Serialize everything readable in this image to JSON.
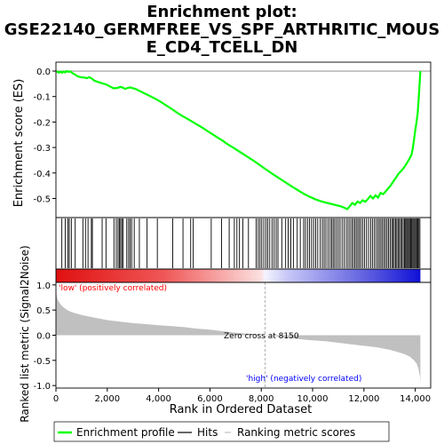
{
  "chart_data": {
    "type": "line",
    "title_lines": [
      "Enrichment plot:",
      "GSE22140_GERMFREE_VS_SPF_ARTHRITIC_MOUS",
      "E_CD4_TCELL_DN"
    ],
    "top_panel": {
      "ylabel": "Enrichment score (ES)",
      "ylim": [
        -0.575,
        0.035
      ],
      "yticks": [
        0.0,
        -0.1,
        -0.2,
        -0.3,
        -0.4,
        -0.5
      ],
      "ytick_labels": [
        "0.0",
        "-0.1",
        "-0.2",
        "-0.3",
        "-0.4",
        "-0.5"
      ],
      "grid": false
    },
    "x_axis": {
      "label": "Rank in Ordered Dataset",
      "lim": [
        0,
        14600
      ],
      "ticks": [
        0,
        2000,
        4000,
        6000,
        8000,
        10000,
        12000,
        14000
      ],
      "tick_labels": [
        "0",
        "2,000",
        "4,000",
        "6,000",
        "8,000",
        "10,000",
        "12,000",
        "14,000"
      ]
    },
    "enrichment_profile": {
      "name": "Enrichment profile",
      "color": "#00ff00",
      "x": [
        0,
        60,
        120,
        180,
        240,
        300,
        360,
        420,
        480,
        560,
        640,
        720,
        800,
        900,
        1000,
        1100,
        1200,
        1300,
        1400,
        1500,
        1650,
        1800,
        1950,
        2100,
        2250,
        2400,
        2500,
        2600,
        2700,
        2800,
        2900,
        3000,
        3100,
        3200,
        3300,
        3500,
        3700,
        3900,
        4100,
        4300,
        4500,
        4700,
        4900,
        5100,
        5300,
        5500,
        5700,
        5900,
        6100,
        6300,
        6500,
        6700,
        6900,
        7100,
        7300,
        7500,
        7700,
        7900,
        8100,
        8300,
        8500,
        8700,
        8900,
        9100,
        9300,
        9500,
        9700,
        9900,
        10100,
        10300,
        10500,
        10700,
        10900,
        11100,
        11250,
        11350,
        11450,
        11550,
        11650,
        11750,
        11850,
        11950,
        12050,
        12150,
        12250,
        12350,
        12450,
        12550,
        12650,
        12750,
        12850,
        12950,
        13050,
        13150,
        13250,
        13350,
        13450,
        13550,
        13650,
        13750,
        13850,
        13900,
        13950,
        14000,
        14050,
        14100,
        14150,
        14200
      ],
      "y": [
        0.0,
        -0.003,
        -0.006,
        -0.002,
        -0.007,
        -0.002,
        -0.005,
        0.0,
        -0.003,
        -0.001,
        -0.008,
        -0.012,
        -0.018,
        -0.022,
        -0.025,
        -0.025,
        -0.028,
        -0.024,
        -0.03,
        -0.038,
        -0.043,
        -0.048,
        -0.052,
        -0.06,
        -0.068,
        -0.066,
        -0.062,
        -0.065,
        -0.07,
        -0.066,
        -0.064,
        -0.068,
        -0.07,
        -0.075,
        -0.08,
        -0.09,
        -0.1,
        -0.11,
        -0.122,
        -0.135,
        -0.148,
        -0.162,
        -0.175,
        -0.186,
        -0.198,
        -0.21,
        -0.222,
        -0.235,
        -0.248,
        -0.261,
        -0.274,
        -0.288,
        -0.3,
        -0.313,
        -0.326,
        -0.339,
        -0.352,
        -0.366,
        -0.38,
        -0.394,
        -0.408,
        -0.421,
        -0.434,
        -0.447,
        -0.46,
        -0.472,
        -0.484,
        -0.494,
        -0.503,
        -0.51,
        -0.516,
        -0.521,
        -0.526,
        -0.531,
        -0.537,
        -0.542,
        -0.53,
        -0.518,
        -0.525,
        -0.512,
        -0.518,
        -0.507,
        -0.513,
        -0.503,
        -0.49,
        -0.5,
        -0.488,
        -0.497,
        -0.478,
        -0.483,
        -0.472,
        -0.46,
        -0.448,
        -0.432,
        -0.418,
        -0.402,
        -0.392,
        -0.38,
        -0.365,
        -0.348,
        -0.33,
        -0.305,
        -0.27,
        -0.23,
        -0.2,
        -0.16,
        -0.08,
        0.0
      ]
    },
    "hits": {
      "name": "Hits",
      "ranks": [
        230,
        360,
        470,
        520,
        600,
        750,
        1050,
        1150,
        1250,
        1380,
        1420,
        1800,
        1950,
        2260,
        2350,
        2420,
        2470,
        2520,
        2570,
        2620,
        2760,
        2830,
        2890,
        2950,
        3050,
        3250,
        3550,
        3950,
        4550,
        4950,
        5250,
        5350,
        6050,
        6450,
        6750,
        6950,
        7050,
        7150,
        7280,
        7500,
        7800,
        7880,
        7950,
        8020,
        8100,
        8180,
        8250,
        8330,
        8420,
        8500,
        8580,
        8650,
        8800,
        8950,
        9050,
        9150,
        9250,
        9400,
        9520,
        9650,
        9720,
        9800,
        9880,
        9960,
        10040,
        10120,
        10200,
        10300,
        10380,
        10450,
        10520,
        10600,
        10680,
        10740,
        10800,
        10860,
        10930,
        11000,
        11070,
        11150,
        11230,
        11310,
        11380,
        11450,
        11520,
        11580,
        11640,
        11700,
        11760,
        11820,
        11880,
        11950,
        12020,
        12100,
        12180,
        12260,
        12330,
        12400,
        12470,
        12540,
        12600,
        12660,
        12720,
        12780,
        12840,
        12900,
        12960,
        13020,
        13080,
        13130,
        13180,
        13230,
        13280,
        13330,
        13380,
        13430,
        13480,
        13530,
        13580,
        13620,
        13660,
        13700,
        13740,
        13780,
        13820,
        13860,
        13900,
        13940,
        13980,
        14020,
        14060,
        14100,
        14140,
        14180
      ]
    },
    "ranking_metric": {
      "name": "Ranking metric scores",
      "color": "#c0c0c0",
      "ylabel": "Ranked list metric (Signal2Noise)",
      "ylim": [
        -1.05,
        1.05
      ],
      "yticks": [
        1.0,
        0.5,
        0.0,
        -0.5,
        -1.0
      ],
      "ytick_labels": [
        "1.0",
        "0.5",
        "0.0",
        "-0.5",
        "-1.0"
      ],
      "x": [
        0,
        20,
        60,
        120,
        200,
        300,
        450,
        600,
        800,
        1000,
        1300,
        1600,
        2000,
        2500,
        3000,
        3500,
        4000,
        4500,
        5000,
        5500,
        6000,
        6500,
        7000,
        7500,
        8000,
        8150,
        8500,
        9000,
        9500,
        10000,
        10500,
        11000,
        11500,
        12000,
        12500,
        13000,
        13300,
        13600,
        13800,
        13950,
        14050,
        14120,
        14180,
        14200
      ],
      "values": [
        0.97,
        0.8,
        0.72,
        0.66,
        0.6,
        0.55,
        0.5,
        0.46,
        0.43,
        0.4,
        0.37,
        0.34,
        0.3,
        0.27,
        0.24,
        0.22,
        0.2,
        0.18,
        0.16,
        0.13,
        0.11,
        0.08,
        0.05,
        0.03,
        0.01,
        0.0,
        -0.02,
        -0.05,
        -0.08,
        -0.1,
        -0.12,
        -0.15,
        -0.18,
        -0.21,
        -0.24,
        -0.29,
        -0.33,
        -0.38,
        -0.43,
        -0.5,
        -0.56,
        -0.66,
        -0.82,
        -0.95
      ]
    },
    "annotations": {
      "low_label": "'low' (positively correlated)",
      "high_label": "'high' (negatively correlated)",
      "zero_cross_label": "Zero cross at 8150",
      "zero_cross_rank": 8150,
      "low_color": "#ff0000",
      "high_color": "#0000ff"
    },
    "legend": {
      "position": "bottom",
      "entries": [
        {
          "label": "Enrichment profile",
          "color": "#00ff00"
        },
        {
          "label": "Hits",
          "color": "#000000"
        },
        {
          "label": "Ranking metric scores",
          "color": "#c0c0c0"
        }
      ]
    }
  }
}
